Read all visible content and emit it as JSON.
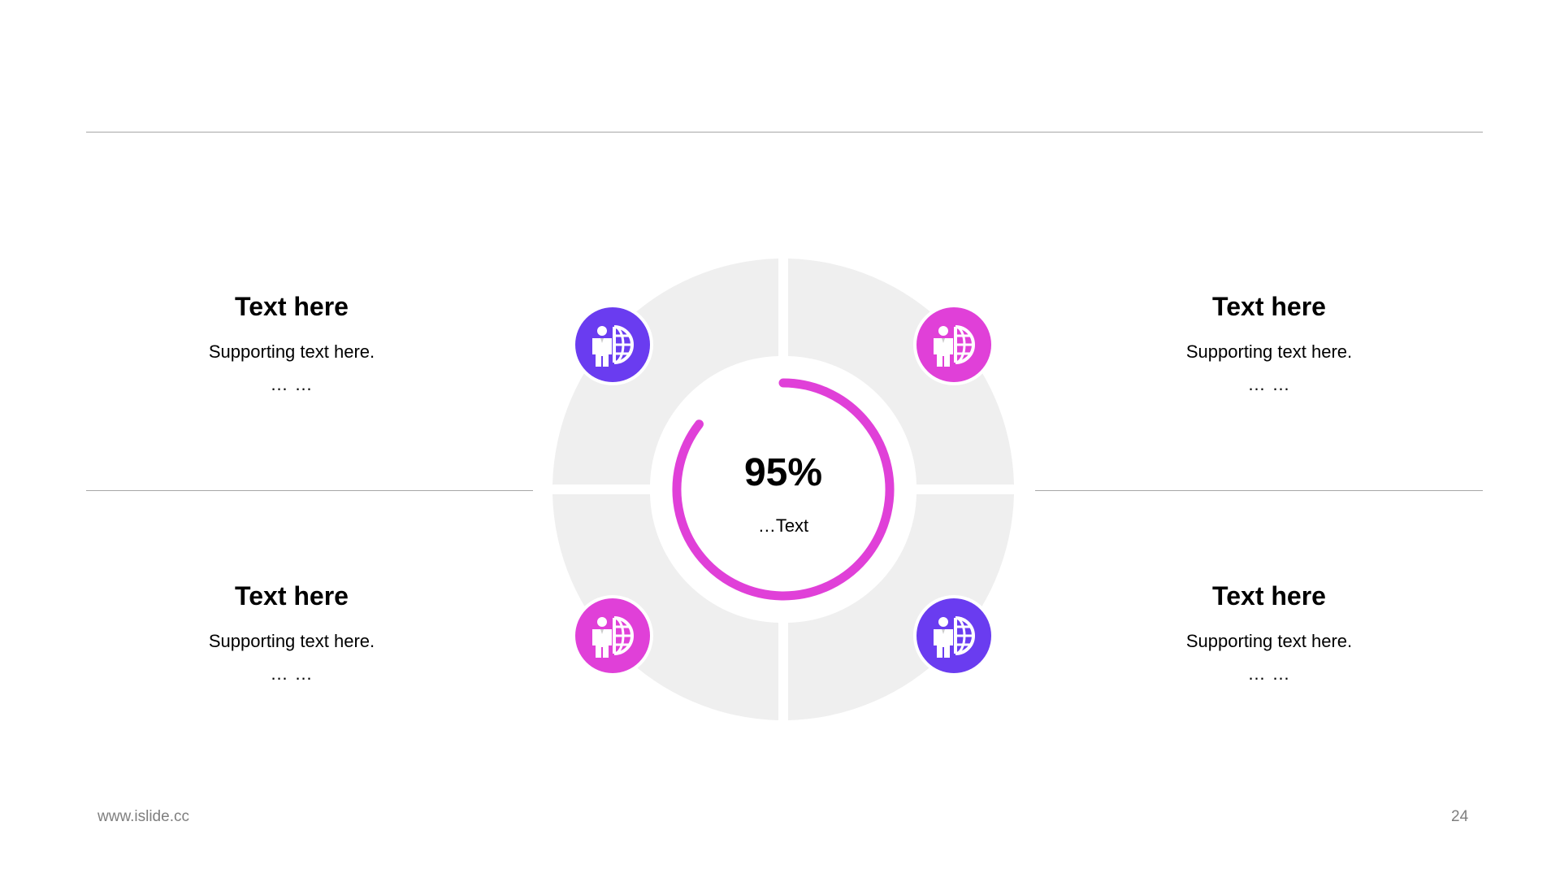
{
  "blocks": [
    {
      "title": "Text here",
      "sub": "Supporting  text here.",
      "dots": "… …"
    },
    {
      "title": "Text here",
      "sub": "Supporting  text here.",
      "dots": "… …"
    },
    {
      "title": "Text here",
      "sub": "Supporting  text here.",
      "dots": "… …"
    },
    {
      "title": "Text here",
      "sub": "Supporting  text here.",
      "dots": "… …"
    }
  ],
  "center": {
    "value": "95%",
    "label": "…Text",
    "progress": 0.95
  },
  "icons": [
    {
      "name": "businessman-globe-icon",
      "color": "#6a3cf0"
    },
    {
      "name": "businessman-globe-icon",
      "color": "#e040d8"
    },
    {
      "name": "businessman-globe-icon",
      "color": "#e040d8"
    },
    {
      "name": "businessman-globe-icon",
      "color": "#6a3cf0"
    }
  ],
  "colors": {
    "accent_purple": "#6a3cf0",
    "accent_magenta": "#e040d8",
    "ring_gray": "#efefef"
  },
  "footer": {
    "website": "www.islide.cc",
    "page_number": "24"
  }
}
